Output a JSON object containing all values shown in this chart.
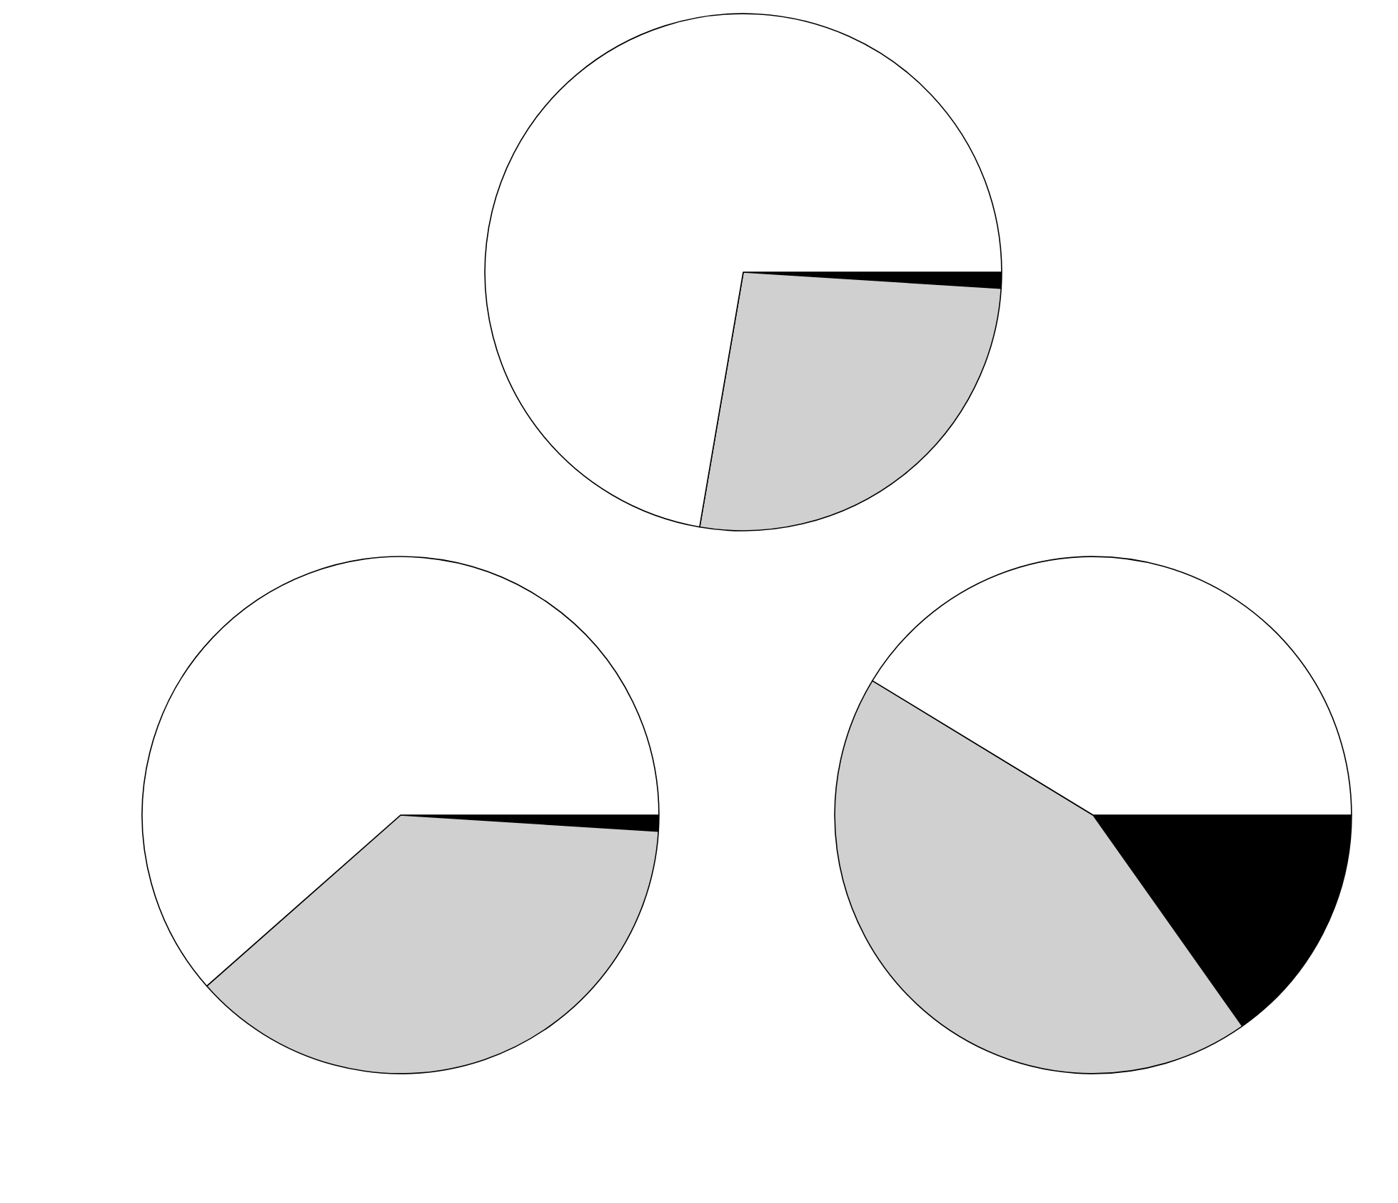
{
  "chart_data": [
    {
      "type": "pie",
      "categories": [
        null,
        null,
        null
      ],
      "values": [
        1,
        26.7,
        72.3
      ],
      "colors": [
        "#000000",
        "#d0d0d0",
        "#ffffff"
      ]
    },
    {
      "type": "pie",
      "categories": [
        null,
        null,
        null
      ],
      "values": [
        1,
        37.5,
        61.5
      ],
      "colors": [
        "#000000",
        "#d0d0d0",
        "#ffffff"
      ]
    },
    {
      "type": "pie",
      "categories": [
        null,
        null,
        null
      ],
      "values": [
        15.2,
        43.5,
        41.3
      ],
      "colors": [
        "#000000",
        "#d0d0d0",
        "#ffffff"
      ]
    }
  ]
}
